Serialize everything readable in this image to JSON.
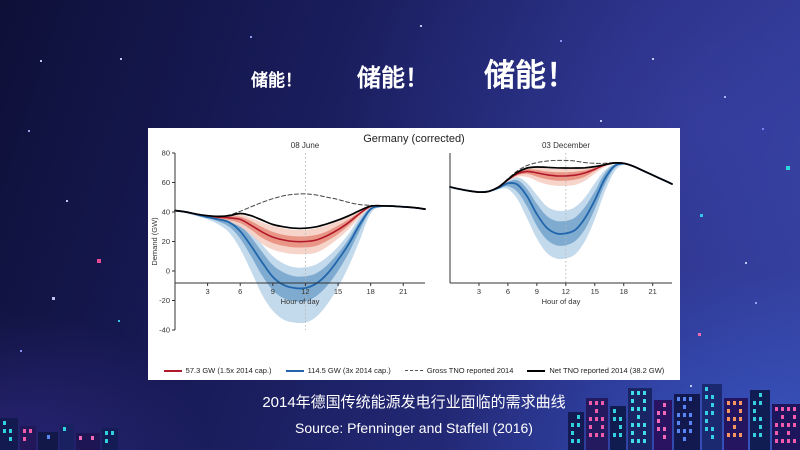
{
  "slide": {
    "titles": [
      {
        "text": "储能！"
      },
      {
        "text": "储能！"
      },
      {
        "text": "储能！"
      }
    ],
    "caption_line1": "2014年德国传统能源发电行业面临的需求曲线",
    "caption_line2": "Source: Pfenninger and Staffell (2016)"
  },
  "colors": {
    "background_top": "#0e1038",
    "background_bottom": "#33409c",
    "red_line": "#b2182b",
    "red_band_inner": "#e79080",
    "red_band_outer": "#f5d0c5",
    "blue_line": "#2166ac",
    "blue_band_inner": "#7fabd0",
    "blue_band_outer": "#c3d9ec",
    "gross_line": "#444444",
    "net_line": "#000000",
    "neon_cyan": "#34dbe8",
    "neon_pink": "#ff5fb0"
  },
  "chart_data": {
    "type": "line",
    "title": "Germany (corrected)",
    "ylabel": "Demand (GW)",
    "xlabel": "Hour of day",
    "grid": false,
    "legend_position": "bottom",
    "midday_line_hour": 12,
    "x_hours": [
      0,
      1,
      2,
      3,
      4,
      5,
      6,
      7,
      8,
      9,
      10,
      11,
      12,
      13,
      14,
      15,
      16,
      17,
      18,
      19,
      20,
      21,
      22,
      23
    ],
    "x_ticks": [
      3,
      6,
      9,
      12,
      15,
      18,
      21
    ],
    "panels": [
      {
        "label": "08 June",
        "ylim": [
          -40,
          80
        ],
        "yticks": [
          80,
          60,
          40,
          20,
          0,
          -20,
          -40
        ],
        "series": {
          "gross": [
            41,
            40,
            38.5,
            37.5,
            37,
            38,
            40.5,
            43.5,
            46.5,
            49,
            51,
            52,
            52.3,
            51.5,
            50,
            48.5,
            46.5,
            45,
            44.5,
            44,
            44,
            43.5,
            43,
            42
          ],
          "net": [
            41,
            40,
            38.5,
            37.5,
            37,
            37.5,
            39,
            37.5,
            34.5,
            31.5,
            30,
            29,
            29,
            30,
            32,
            34.5,
            37.5,
            41,
            44,
            44.2,
            44,
            43.5,
            43,
            42
          ],
          "red": {
            "line": [
              41,
              40,
              38.5,
              37,
              36.5,
              36,
              35,
              31,
              26.5,
              23,
              21,
              20,
              20,
              21,
              24,
              28,
              33,
              39,
              43.8,
              44.2,
              44,
              43.5,
              43,
              42
            ],
            "inner_upper": [
              41,
              40,
              38.5,
              37.3,
              37,
              37,
              36.8,
              33.8,
              29.8,
              26.5,
              24.5,
              23.5,
              23.5,
              24.5,
              27,
              30.8,
              35,
              40,
              44,
              44.2,
              44,
              43.5,
              43,
              42
            ],
            "inner_lower": [
              41,
              39.8,
              38.3,
              36.8,
              35.5,
              34.5,
              32.5,
              28,
              22.5,
              19,
              17,
              16,
              16,
              17,
              20.5,
              25,
              31,
              38,
              43.5,
              44,
              44,
              43.5,
              43,
              42
            ],
            "outer_upper": [
              41.5,
              40.2,
              39,
              38,
              37.5,
              38,
              38.2,
              36,
              33,
              30.5,
              29,
              28,
              28,
              29,
              31,
              34,
              37.2,
              41,
              44.5,
              44.4,
              44,
              43.5,
              43,
              42
            ],
            "outer_lower": [
              40.8,
              39.5,
              38,
              36.3,
              34.5,
              33,
              30,
              24.5,
              18.5,
              14.5,
              12.5,
              11.5,
              11.5,
              12.5,
              16.5,
              22,
              28.5,
              36.5,
              43,
              44,
              44,
              43.5,
              43,
              42
            ]
          },
          "blue": {
            "line": [
              41,
              40,
              38.3,
              36.5,
              35,
              33,
              27,
              17,
              6,
              -4,
              -9.5,
              -11.5,
              -11.5,
              -8.5,
              -2,
              7.5,
              18.5,
              31.5,
              42,
              44,
              44,
              43.5,
              43,
              42
            ],
            "inner_upper": [
              41,
              40,
              38.5,
              37,
              36,
              35,
              31,
              23,
              13,
              4,
              -1,
              -3.5,
              -3.5,
              -1.5,
              4,
              12,
              22,
              34,
              43,
              44.2,
              44,
              43.5,
              43,
              42
            ],
            "inner_lower": [
              40.8,
              39.6,
              38,
              36,
              33.5,
              30,
              22,
              10,
              -3,
              -13,
              -18.5,
              -20.5,
              -20.5,
              -17,
              -10,
              0,
              12.5,
              27.5,
              41,
              43.8,
              44,
              43.5,
              43,
              42
            ],
            "outer_upper": [
              41.5,
              40.3,
              39,
              37.3,
              37,
              36,
              33,
              27,
              18,
              10,
              5,
              2.5,
              2.5,
              4.5,
              9.5,
              16.5,
              25.5,
              36.5,
              44,
              44.3,
              44,
              43.5,
              43,
              42
            ],
            "outer_lower": [
              40.6,
              39.2,
              37.2,
              35,
              31.5,
              26,
              15,
              0,
              -16,
              -27,
              -33,
              -35,
              -35,
              -31,
              -22.5,
              -11,
              3.5,
              21,
              39,
              43.5,
              44,
              43.5,
              43,
              42
            ]
          }
        }
      },
      {
        "label": "03 December",
        "ylim": [
          -8,
          80
        ],
        "yticks": [],
        "series": {
          "gross": [
            57,
            55.5,
            54.3,
            53.5,
            54,
            57,
            62.5,
            68,
            71.5,
            73.5,
            74.5,
            75,
            75,
            74.5,
            73.5,
            73,
            73,
            73.5,
            73,
            71,
            68,
            65,
            62,
            59
          ],
          "net": [
            57,
            55.5,
            54.3,
            53.5,
            54,
            56.8,
            62,
            67,
            69.8,
            70.5,
            70.3,
            70,
            69.8,
            69.8,
            70,
            70.8,
            72,
            73.2,
            73,
            71,
            68,
            65,
            62,
            59
          ],
          "red": {
            "line": [
              57,
              55.5,
              54.3,
              53.5,
              54,
              56.8,
              61.8,
              66,
              67.5,
              66.5,
              65.3,
              64.5,
              64.5,
              65,
              66.5,
              69,
              71.8,
              73.2,
              73,
              71,
              68,
              65,
              62,
              59
            ],
            "inner_upper": [
              57,
              55.5,
              54.3,
              53.5,
              54,
              56.8,
              62,
              66.8,
              69,
              68.5,
              67.5,
              67,
              67,
              67.3,
              68.3,
              70,
              72,
              73.2,
              73,
              71,
              68,
              65,
              62,
              59
            ],
            "inner_lower": [
              57,
              55.5,
              54.3,
              53.5,
              54,
              56.6,
              61.3,
              65,
              65.8,
              64,
              62.3,
              61.3,
              61.3,
              62,
              64,
              67.8,
              71.3,
              73,
              73,
              71,
              68,
              65,
              62,
              59
            ],
            "outer_upper": [
              57,
              55.5,
              54.3,
              53.5,
              54,
              57,
              62.3,
              67.5,
              70.3,
              70.3,
              69.5,
              69.3,
              69.3,
              69.5,
              70,
              71,
              72.3,
              73.3,
              73,
              71,
              68,
              65,
              62,
              59
            ],
            "outer_lower": [
              57,
              55.5,
              54.3,
              53.5,
              53.8,
              56.4,
              60.8,
              64,
              63.8,
              61,
              58.8,
              57.8,
              57.8,
              58.5,
              61.3,
              66,
              70.5,
              72.8,
              73,
              71,
              68,
              65,
              62,
              59
            ]
          },
          "blue": {
            "line": [
              57,
              55.5,
              54.3,
              53.5,
              54,
              56.3,
              59.5,
              58.5,
              50.5,
              38.5,
              29.5,
              25.5,
              25.5,
              28,
              36,
              48,
              62,
              71,
              72.8,
              71,
              68,
              65,
              62,
              59
            ],
            "inner_upper": [
              57,
              55.5,
              54.3,
              53.5,
              54,
              56.5,
              60.5,
              61.5,
              55.5,
              45.5,
              37.5,
              34,
              34,
              36.5,
              43.5,
              54,
              66,
              72,
              73,
              71,
              68,
              65,
              62,
              59
            ],
            "inner_lower": [
              57,
              55.5,
              54.3,
              53.5,
              53.8,
              55.8,
              57.5,
              53.5,
              43.5,
              30.5,
              21.5,
              17.5,
              17.5,
              20.5,
              28.5,
              42,
              58,
              69.5,
              72.5,
              71,
              68,
              65,
              62,
              59
            ],
            "outer_upper": [
              57,
              55.5,
              54.3,
              53.5,
              54,
              56.8,
              61.3,
              63.5,
              59.5,
              51.5,
              44,
              41,
              41,
              43.5,
              50,
              59.5,
              68,
              72.5,
              73,
              71,
              68,
              65,
              62,
              59
            ],
            "outer_lower": [
              57,
              55.5,
              54.3,
              53.5,
              53.6,
              55.4,
              55.5,
              48.5,
              35.5,
              22,
              12.5,
              8.5,
              8.5,
              11.5,
              20.5,
              35,
              53,
              67,
              72,
              70.8,
              68,
              65,
              62,
              59
            ]
          }
        }
      }
    ],
    "legend": [
      {
        "label": "57.3 GW (1.5x 2014 cap.)",
        "style": "solid",
        "color": "#b2182b"
      },
      {
        "label": "114.5 GW (3x 2014 cap.)",
        "style": "solid",
        "color": "#2166ac"
      },
      {
        "label": "Gross TNO reported 2014",
        "style": "dashed",
        "color": "#555555"
      },
      {
        "label": "Net TNO reported 2014 (38.2 GW)",
        "style": "solid",
        "color": "#000000"
      }
    ]
  }
}
